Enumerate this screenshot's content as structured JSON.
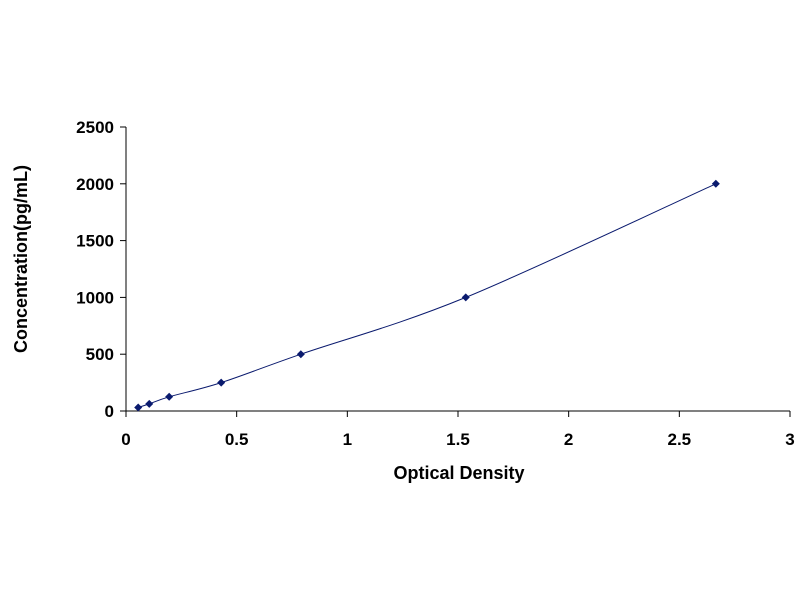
{
  "chart_data": {
    "type": "scatter",
    "title": "",
    "xlabel": "Optical Density",
    "ylabel": "Concentration(pg/mL)",
    "xlim": [
      0,
      3
    ],
    "ylim": [
      0,
      2500
    ],
    "x_ticks": [
      "0",
      "0.5",
      "1",
      "1.5",
      "2",
      "2.5",
      "3"
    ],
    "y_ticks": [
      "0",
      "500",
      "1000",
      "1500",
      "2000",
      "2500"
    ],
    "grid": false,
    "legend": "none",
    "series": [
      {
        "color": "#0a1a6e",
        "marker": "diamond",
        "line": "smooth",
        "x": [
          0.055,
          0.105,
          0.195,
          0.43,
          0.79,
          1.535,
          2.665
        ],
        "y": [
          31.25,
          62.5,
          125,
          250,
          500,
          1000,
          2000
        ]
      }
    ]
  }
}
